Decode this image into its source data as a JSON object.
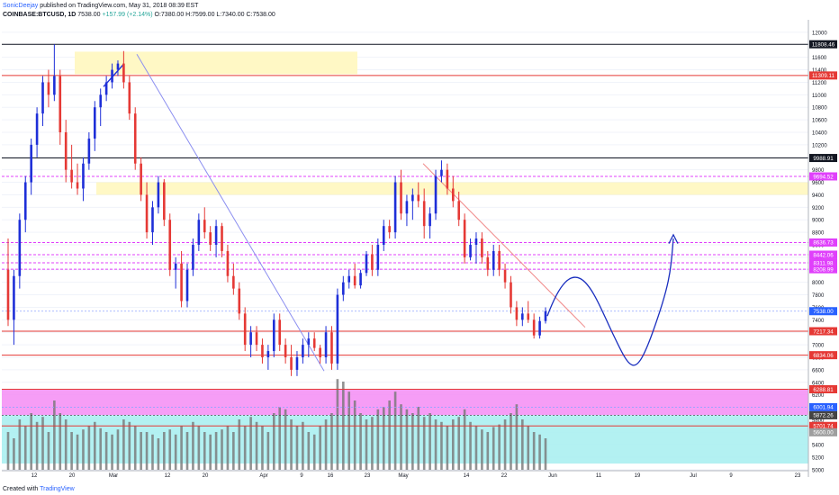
{
  "header": {
    "author": "SonicDeejay",
    "published_text": "published on TradingView.com, May 31, 2018 08:39 EST",
    "symbol": "COINBASE:BTCUSD, 1D",
    "price": "7538.00",
    "change": "+157.99 (+2.14%)",
    "ohlc": "O:7380.00 H:7599.00 L:7340.00 C:7538.00"
  },
  "footer": {
    "created_with": "Created with",
    "brand": "TradingView"
  },
  "colors": {
    "up": "#1e2fd8",
    "down": "#e53935",
    "volume": "#777777",
    "level_red": "#e53935",
    "level_black": "#131722",
    "level_magenta": "#e040fb",
    "zone_yellow": "#fff8c5",
    "zone_magenta": "#f48cf4",
    "zone_cyan": "#a6eef0"
  },
  "chart_data": {
    "type": "candlestick",
    "symbol": "COINBASE:BTCUSD",
    "interval": "1D",
    "ylim": [
      5000,
      12200
    ],
    "y_ticks": [
      "12000",
      "11800",
      "11600",
      "11400",
      "11200",
      "11000",
      "10800",
      "10600",
      "10400",
      "10200",
      "10000",
      "9800",
      "9600",
      "9400",
      "9200",
      "9000",
      "8800",
      "8600",
      "8400",
      "8200",
      "8000",
      "7800",
      "7600",
      "7400",
      "7200",
      "7000",
      "6800",
      "6600",
      "6400",
      "6200",
      "6000",
      "5800",
      "5600",
      "5400",
      "5200",
      "5000"
    ],
    "x_ticks": [
      "12",
      "20",
      "Mar",
      "12",
      "20",
      "Apr",
      "9",
      "16",
      "23",
      "May",
      "14",
      "22",
      "Jun",
      "11",
      "19",
      "Jul",
      "9",
      "23"
    ],
    "price_labels": [
      {
        "text": "11808.46",
        "value": 11808.46,
        "style": "black"
      },
      {
        "text": "11309.11",
        "value": 11309.11,
        "style": "red"
      },
      {
        "text": "9988.91",
        "value": 9988.91,
        "style": "black"
      },
      {
        "text": "9694.52",
        "value": 9694.52,
        "style": "magenta"
      },
      {
        "text": "8636.73",
        "value": 8636.73,
        "style": "magenta"
      },
      {
        "text": "8442.06",
        "value": 8442.06,
        "style": "magenta"
      },
      {
        "text": "8311.98",
        "value": 8311.98,
        "style": "magenta"
      },
      {
        "text": "8208.99",
        "value": 8208.99,
        "style": "magenta"
      },
      {
        "text": "7538.00",
        "value": 7538.0,
        "style": "blue"
      },
      {
        "text": "7217.34",
        "value": 7217.34,
        "style": "red"
      },
      {
        "text": "6834.06",
        "value": 6834.06,
        "style": "red"
      },
      {
        "text": "6288.81",
        "value": 6288.81,
        "style": "red"
      },
      {
        "text": "6001.94",
        "value": 6001.94,
        "style": "blue"
      },
      {
        "text": "5872.26",
        "value": 5872.26,
        "style": "dark"
      },
      {
        "text": "5701.74",
        "value": 5701.74,
        "style": "red"
      },
      {
        "text": "5600.00",
        "value": 5600.0,
        "style": "gray"
      }
    ],
    "candles": [
      [
        8200,
        8700,
        7300,
        7400
      ],
      [
        7400,
        8200,
        7000,
        8100
      ],
      [
        8100,
        9100,
        7900,
        9000
      ],
      [
        9000,
        9700,
        8800,
        9600
      ],
      [
        9600,
        10300,
        9400,
        10200
      ],
      [
        10200,
        10800,
        10000,
        10700
      ],
      [
        10700,
        11300,
        10500,
        11200
      ],
      [
        11200,
        11400,
        10800,
        11000
      ],
      [
        11000,
        11808,
        10900,
        11300
      ],
      [
        11300,
        11400,
        10200,
        10400
      ],
      [
        10400,
        10600,
        9600,
        9800
      ],
      [
        9800,
        10200,
        9500,
        9600
      ],
      [
        9600,
        9900,
        9400,
        9500
      ],
      [
        9500,
        10000,
        9300,
        9900
      ],
      [
        9900,
        10400,
        9800,
        10300
      ],
      [
        10300,
        10900,
        10100,
        10800
      ],
      [
        10800,
        11100,
        10500,
        11000
      ],
      [
        11000,
        11300,
        10900,
        11200
      ],
      [
        11200,
        11500,
        11100,
        11400
      ],
      [
        11400,
        11550,
        11300,
        11500
      ],
      [
        11500,
        11700,
        11100,
        11200
      ],
      [
        11200,
        11300,
        10600,
        10700
      ],
      [
        10700,
        10800,
        9800,
        9900
      ],
      [
        9900,
        10000,
        9300,
        9400
      ],
      [
        9400,
        9600,
        8700,
        8800
      ],
      [
        8800,
        9300,
        8600,
        9200
      ],
      [
        9200,
        9700,
        9100,
        9600
      ],
      [
        9600,
        9650,
        8900,
        9000
      ],
      [
        9000,
        9100,
        8100,
        8200
      ],
      [
        8200,
        8400,
        7900,
        8300
      ],
      [
        8300,
        8500,
        7600,
        7700
      ],
      [
        7700,
        8300,
        7600,
        8200
      ],
      [
        8200,
        8700,
        8100,
        8600
      ],
      [
        8600,
        9100,
        8500,
        9000
      ],
      [
        9000,
        9200,
        8700,
        8800
      ],
      [
        8800,
        8900,
        8500,
        8600
      ],
      [
        8600,
        9000,
        8400,
        8900
      ],
      [
        8900,
        8950,
        8400,
        8500
      ],
      [
        8500,
        8600,
        8000,
        8100
      ],
      [
        8100,
        8300,
        7800,
        7900
      ],
      [
        7900,
        8000,
        7400,
        7500
      ],
      [
        7500,
        7600,
        6900,
        7000
      ],
      [
        7000,
        7300,
        6800,
        7200
      ],
      [
        7200,
        7300,
        6900,
        7000
      ],
      [
        7000,
        7100,
        6700,
        6800
      ],
      [
        6800,
        7000,
        6600,
        6900
      ],
      [
        6900,
        7500,
        6800,
        7400
      ],
      [
        7400,
        7500,
        6900,
        7000
      ],
      [
        7000,
        7100,
        6700,
        6800
      ],
      [
        6800,
        7000,
        6500,
        6600
      ],
      [
        6600,
        6900,
        6500,
        6800
      ],
      [
        6800,
        7100,
        6700,
        7000
      ],
      [
        7000,
        7200,
        6800,
        7100
      ],
      [
        7100,
        7200,
        6900,
        6950
      ],
      [
        6950,
        7000,
        6700,
        6800
      ],
      [
        6800,
        7300,
        6700,
        7200
      ],
      [
        7200,
        7300,
        6600,
        6700
      ],
      [
        6700,
        7900,
        6600,
        7800
      ],
      [
        7800,
        8100,
        7700,
        8000
      ],
      [
        8000,
        8200,
        7900,
        8100
      ],
      [
        8100,
        8300,
        7900,
        7950
      ],
      [
        7950,
        8200,
        7900,
        8150
      ],
      [
        8150,
        8500,
        8100,
        8450
      ],
      [
        8450,
        8600,
        8100,
        8200
      ],
      [
        8200,
        8700,
        8100,
        8600
      ],
      [
        8600,
        9000,
        8500,
        8900
      ],
      [
        8900,
        9000,
        8700,
        8800
      ],
      [
        8800,
        9700,
        8700,
        9600
      ],
      [
        9600,
        9800,
        9000,
        9100
      ],
      [
        9100,
        9400,
        8900,
        9300
      ],
      [
        9300,
        9500,
        9000,
        9400
      ],
      [
        9400,
        9600,
        9200,
        9300
      ],
      [
        9300,
        9500,
        8700,
        8900
      ],
      [
        8900,
        9200,
        8700,
        9100
      ],
      [
        9100,
        9800,
        9000,
        9700
      ],
      [
        9700,
        9950,
        9600,
        9800
      ],
      [
        9800,
        9900,
        9400,
        9500
      ],
      [
        9500,
        9700,
        9200,
        9300
      ],
      [
        9300,
        9450,
        8900,
        9000
      ],
      [
        9000,
        9100,
        8300,
        8400
      ],
      [
        8400,
        8700,
        8350,
        8600
      ],
      [
        8600,
        8800,
        8300,
        8700
      ],
      [
        8700,
        8800,
        8300,
        8400
      ],
      [
        8400,
        8500,
        8100,
        8200
      ],
      [
        8200,
        8600,
        8100,
        8500
      ],
      [
        8500,
        8600,
        8100,
        8200
      ],
      [
        8200,
        8300,
        7900,
        8000
      ],
      [
        8000,
        8100,
        7500,
        7600
      ],
      [
        7600,
        7700,
        7300,
        7400
      ],
      [
        7400,
        7600,
        7300,
        7500
      ],
      [
        7500,
        7700,
        7350,
        7400
      ],
      [
        7400,
        7500,
        7100,
        7150
      ],
      [
        7150,
        7450,
        7100,
        7380
      ],
      [
        7380,
        7599,
        7340,
        7538
      ]
    ],
    "volumes": [
      0.3,
      0.25,
      0.4,
      0.35,
      0.45,
      0.38,
      0.42,
      0.3,
      0.55,
      0.45,
      0.4,
      0.3,
      0.28,
      0.32,
      0.35,
      0.38,
      0.33,
      0.3,
      0.28,
      0.32,
      0.4,
      0.38,
      0.35,
      0.3,
      0.3,
      0.28,
      0.25,
      0.3,
      0.32,
      0.28,
      0.35,
      0.3,
      0.38,
      0.35,
      0.3,
      0.28,
      0.3,
      0.32,
      0.35,
      0.3,
      0.4,
      0.35,
      0.42,
      0.38,
      0.35,
      0.3,
      0.45,
      0.5,
      0.48,
      0.4,
      0.35,
      0.38,
      0.3,
      0.28,
      0.35,
      0.4,
      0.45,
      0.72,
      0.7,
      0.62,
      0.55,
      0.45,
      0.4,
      0.42,
      0.48,
      0.5,
      0.55,
      0.62,
      0.52,
      0.48,
      0.45,
      0.5,
      0.42,
      0.45,
      0.4,
      0.38,
      0.35,
      0.4,
      0.42,
      0.48,
      0.38,
      0.35,
      0.32,
      0.3,
      0.34,
      0.36,
      0.4,
      0.45,
      0.52,
      0.4,
      0.35,
      0.3,
      0.28,
      0.25
    ]
  }
}
